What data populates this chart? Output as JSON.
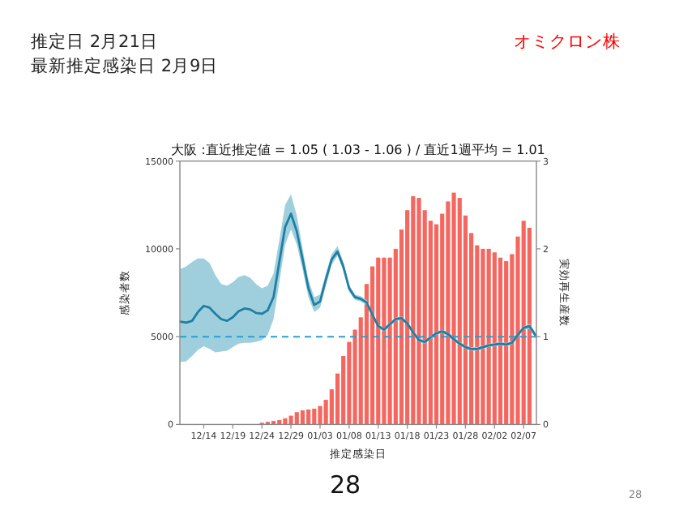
{
  "chart_data": {
    "type": "bar",
    "title": "大阪 :直近推定値 = 1.05 ( 1.03 - 1.06 ) / 直近1週平均 = 1.01",
    "xlabel": "推定感染日",
    "ylabel": "感染者数",
    "y2label": "実効再生産数",
    "annotations": [
      "推定日 2月21日",
      "最新推定感染日 2月9日",
      "オミクロン株",
      "28",
      "28"
    ],
    "categories": [
      null,
      null,
      null,
      null,
      "12/14",
      null,
      null,
      null,
      null,
      "12/19",
      null,
      null,
      null,
      null,
      "12/24",
      null,
      null,
      null,
      null,
      "12/29",
      null,
      null,
      null,
      null,
      "01/03",
      null,
      null,
      null,
      null,
      "01/08",
      null,
      null,
      null,
      null,
      "01/13",
      null,
      null,
      null,
      null,
      "01/18",
      null,
      null,
      null,
      null,
      "01/23",
      null,
      null,
      null,
      null,
      "01/28",
      null,
      null,
      null,
      null,
      "02/02",
      null,
      null,
      null,
      null,
      "02/07",
      null,
      null
    ],
    "ylim": [
      0,
      15000
    ],
    "yticks": [
      0,
      5000,
      10000,
      15000
    ],
    "y2lim": [
      0,
      3
    ],
    "y2ticks": [
      0,
      1,
      2,
      3
    ],
    "grid": false,
    "ref_lines": [
      {
        "axis": "y2",
        "value": 1,
        "color": "#2a9fd0",
        "line_style": "dashed"
      }
    ],
    "series": [
      {
        "color": "#f4665e",
        "values": [
          null,
          null,
          null,
          null,
          null,
          null,
          null,
          null,
          null,
          null,
          null,
          null,
          null,
          null,
          100,
          150,
          200,
          250,
          350,
          500,
          700,
          800,
          850,
          900,
          1050,
          1400,
          2000,
          2900,
          3900,
          4700,
          5400,
          6100,
          8000,
          9000,
          9500,
          9500,
          9500,
          10000,
          11100,
          12200,
          13000,
          12900,
          12200,
          11600,
          11400,
          12000,
          12700,
          13200,
          12900,
          11900,
          10900,
          10200,
          10000,
          10000,
          9800,
          9500,
          9300,
          9700,
          10700,
          11600,
          11200,
          null
        ]
      },
      {
        "type": "line",
        "axis": "y2",
        "color": "#1f7fa3",
        "values": [
          1.17,
          1.16,
          1.18,
          1.28,
          1.35,
          1.33,
          1.26,
          1.2,
          1.18,
          1.22,
          1.29,
          1.32,
          1.31,
          1.27,
          1.26,
          1.3,
          1.45,
          1.85,
          2.25,
          2.4,
          2.2,
          1.88,
          1.55,
          1.36,
          1.4,
          1.65,
          1.88,
          1.97,
          1.8,
          1.55,
          1.45,
          1.43,
          1.39,
          1.25,
          1.12,
          1.08,
          1.14,
          1.2,
          1.21,
          1.15,
          1.05,
          0.96,
          0.94,
          0.99,
          1.04,
          1.06,
          1.03,
          0.97,
          0.92,
          0.88,
          0.86,
          0.86,
          0.88,
          0.9,
          0.91,
          0.92,
          0.91,
          0.93,
          1.02,
          1.1,
          1.12,
          1.02
        ],
        "lower": [
          0.71,
          0.72,
          0.78,
          0.85,
          0.89,
          0.86,
          0.82,
          0.83,
          0.84,
          0.88,
          0.92,
          0.93,
          0.93,
          0.94,
          0.96,
          1.02,
          1.2,
          1.62,
          2.05,
          2.22,
          2.05,
          1.76,
          1.45,
          1.28,
          1.33,
          1.58,
          1.82,
          1.92,
          1.75,
          1.51,
          1.42,
          1.4,
          1.36,
          1.22,
          1.1,
          1.06,
          1.12,
          1.18,
          1.19,
          1.13,
          1.03,
          0.94,
          0.92,
          0.97,
          1.02,
          1.04,
          1.01,
          0.95,
          0.9,
          0.86,
          0.84,
          0.84,
          0.86,
          0.88,
          0.89,
          0.9,
          0.89,
          0.91,
          1.0,
          1.08,
          1.09,
          0.99
        ],
        "upper": [
          1.77,
          1.8,
          1.85,
          1.89,
          1.89,
          1.84,
          1.7,
          1.6,
          1.58,
          1.62,
          1.68,
          1.7,
          1.67,
          1.6,
          1.55,
          1.58,
          1.72,
          2.1,
          2.5,
          2.62,
          2.38,
          2.0,
          1.65,
          1.45,
          1.48,
          1.72,
          1.94,
          2.03,
          1.85,
          1.59,
          1.48,
          1.46,
          1.42,
          1.28,
          1.14,
          1.1,
          1.16,
          1.22,
          1.23,
          1.17,
          1.07,
          0.98,
          0.96,
          1.01,
          1.06,
          1.08,
          1.05,
          0.99,
          0.94,
          0.9,
          0.88,
          0.88,
          0.9,
          0.92,
          0.93,
          0.94,
          0.93,
          0.95,
          1.04,
          1.12,
          1.15,
          1.05
        ]
      }
    ]
  }
}
